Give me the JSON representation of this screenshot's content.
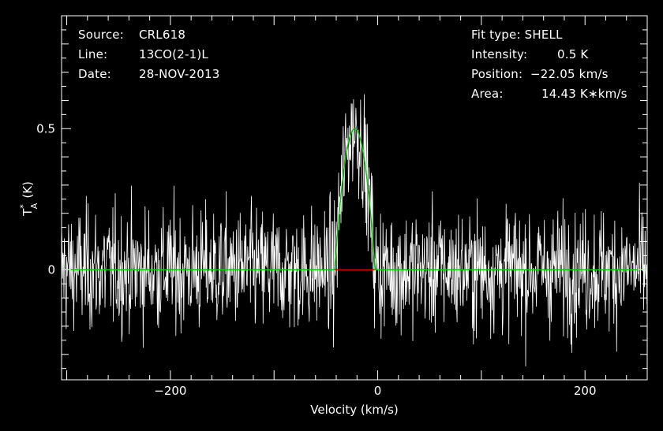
{
  "chart_data": {
    "type": "line",
    "xlabel": "Velocity (km/s)",
    "ylabel": "T*A (K)",
    "ylabel_main": "T",
    "ylabel_sup": "*",
    "ylabel_sub": "A",
    "ylabel_unit": "(K)",
    "xlim": [
      -305,
      260
    ],
    "ylim": [
      -0.39,
      0.9
    ],
    "x_ticks": [
      -200,
      0,
      200
    ],
    "x_tick_labels": [
      "−200",
      "0",
      "200"
    ],
    "y_ticks": [
      0,
      0.5
    ],
    "y_tick_labels": [
      "0",
      "0.5"
    ],
    "series": [
      {
        "type": "noise-spectrum",
        "color": "#ffffff",
        "noise_rms": 0.15,
        "channel_width": 0.45
      },
      {
        "type": "shell-fit",
        "color": "#00c800",
        "intensity": 0.5,
        "position": -22.05,
        "half_width": 19.5
      },
      {
        "type": "window",
        "color": "#c80000",
        "x_range": [
          -42,
          -3
        ]
      }
    ],
    "grid": false
  },
  "info_left": {
    "source_label": "Source:",
    "source_value": "CRL618",
    "line_label": "Line:",
    "line_value": "13CO(2-1)L",
    "date_label": "Date:",
    "date_value": "28-NOV-2013"
  },
  "info_right": {
    "fit_type": "Fit type: SHELL",
    "intensity_label": "Intensity:",
    "intensity_value": "0.5 K",
    "position_label": "Position:",
    "position_value": "−22.05 km/s",
    "area_label": "Area:",
    "area_value": "14.43 K∗km/s"
  }
}
